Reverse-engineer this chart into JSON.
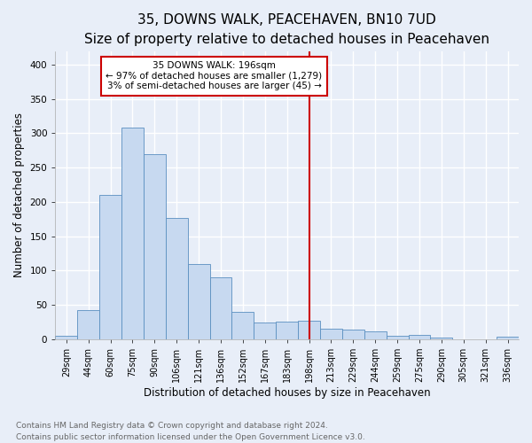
{
  "title1": "35, DOWNS WALK, PEACEHAVEN, BN10 7UD",
  "title2": "Size of property relative to detached houses in Peacehaven",
  "xlabel": "Distribution of detached houses by size in Peacehaven",
  "ylabel": "Number of detached properties",
  "footnote": "Contains HM Land Registry data © Crown copyright and database right 2024.\nContains public sector information licensed under the Open Government Licence v3.0.",
  "categories": [
    "29sqm",
    "44sqm",
    "60sqm",
    "75sqm",
    "90sqm",
    "106sqm",
    "121sqm",
    "136sqm",
    "152sqm",
    "167sqm",
    "183sqm",
    "198sqm",
    "213sqm",
    "229sqm",
    "244sqm",
    "259sqm",
    "275sqm",
    "290sqm",
    "305sqm",
    "321sqm",
    "336sqm"
  ],
  "values": [
    5,
    42,
    210,
    308,
    270,
    177,
    109,
    90,
    40,
    25,
    26,
    27,
    15,
    14,
    11,
    5,
    6,
    3,
    0,
    0,
    4
  ],
  "bar_color": "#c7d9f0",
  "bar_edge_color": "#5a8fc0",
  "vline_index": 11,
  "vline_color": "#cc0000",
  "annotation_text": "35 DOWNS WALK: 196sqm\n← 97% of detached houses are smaller (1,279)\n3% of semi-detached houses are larger (45) →",
  "annotation_box_color": "#ffffff",
  "annotation_border_color": "#cc0000",
  "ylim": [
    0,
    420
  ],
  "yticks": [
    0,
    50,
    100,
    150,
    200,
    250,
    300,
    350,
    400
  ],
  "bg_color": "#e8eef8",
  "grid_color": "#ffffff",
  "title1_fontsize": 11,
  "title2_fontsize": 10,
  "xlabel_fontsize": 8.5,
  "ylabel_fontsize": 8.5,
  "tick_fontsize": 7,
  "footnote_fontsize": 6.5,
  "annotation_fontsize": 7.5
}
